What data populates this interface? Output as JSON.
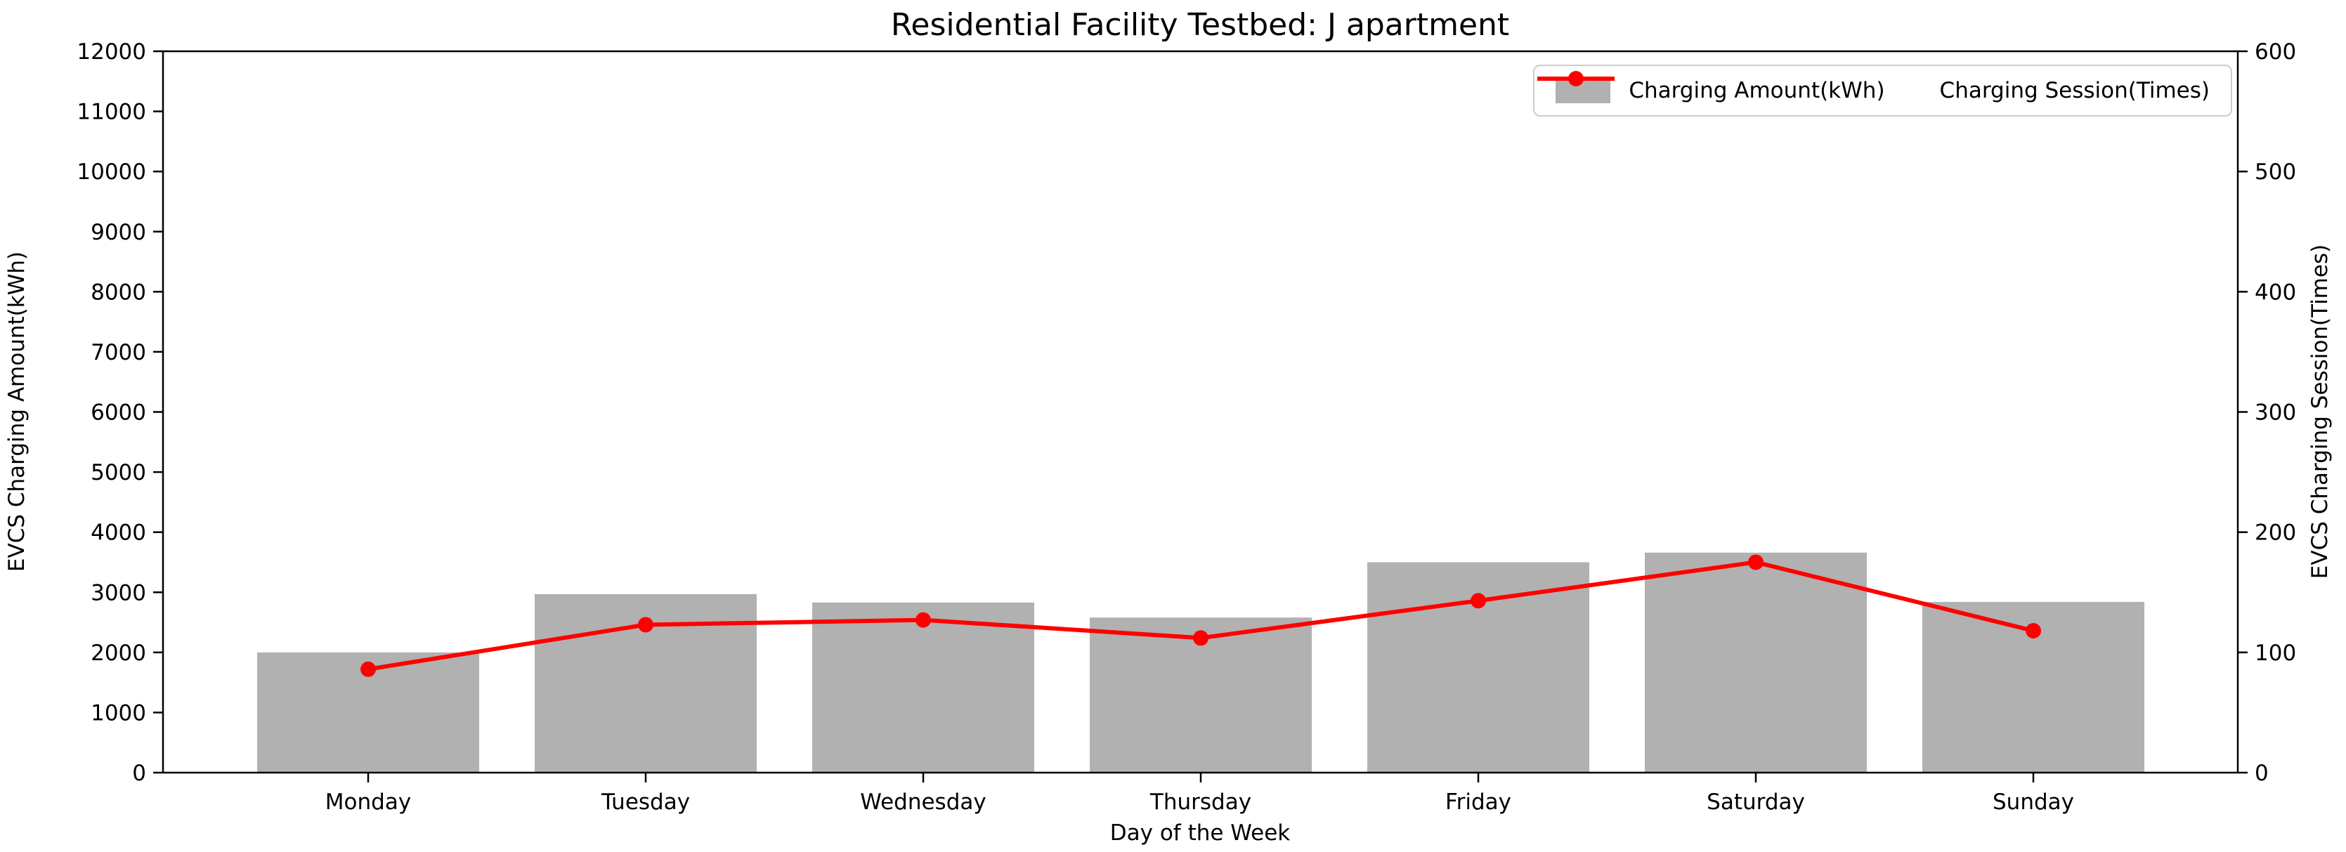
{
  "page": {
    "background": "#ffffff"
  },
  "chart_data": {
    "type": "bar",
    "title": "Residential Facility Testbed: J apartment",
    "xlabel": "Day of the Week",
    "ylabel_left": "EVCS Charging Amount(kWh)",
    "ylabel_right": "EVCS Charging Session(Times)",
    "categories": [
      "Monday",
      "Tuesday",
      "Wednesday",
      "Thursday",
      "Friday",
      "Saturday",
      "Sunday"
    ],
    "series": [
      {
        "name": "Charging Amount(kWh)",
        "type": "bar",
        "axis": "left",
        "color": "#b1b1b1",
        "values": [
          2000,
          2970,
          2830,
          2580,
          3500,
          3660,
          2840
        ]
      },
      {
        "name": "Charging Session(Times)",
        "type": "line",
        "axis": "right",
        "color": "#ff0000",
        "values": [
          86,
          123,
          127,
          112,
          143,
          175,
          118
        ]
      }
    ],
    "ylim_left": [
      0,
      12000
    ],
    "ylim_right": [
      0,
      600
    ],
    "yticks_left": [
      "0",
      "1000",
      "2000",
      "3000",
      "4000",
      "5000",
      "6000",
      "7000",
      "8000",
      "9000",
      "10000",
      "11000",
      "12000"
    ],
    "yticks_right": [
      "0",
      "100",
      "200",
      "300",
      "400",
      "500",
      "600"
    ],
    "grid": false,
    "legend_position": "upper right",
    "axis_color": "#000000"
  }
}
